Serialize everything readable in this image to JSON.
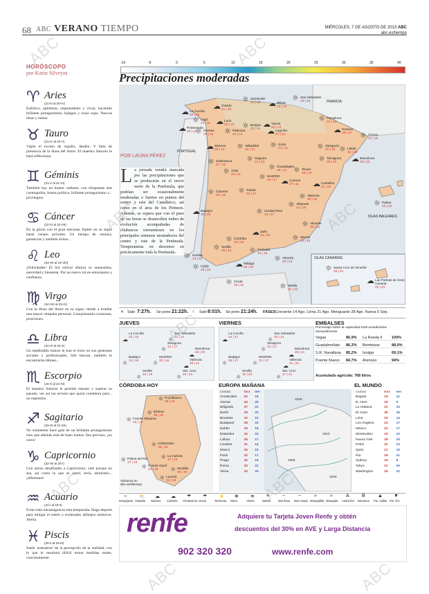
{
  "header": {
    "page_number": "68",
    "brand": "ABC",
    "section_main": "VERANO",
    "section_sub": "TIEMPO",
    "date": "MIÉRCOLES, 7 DE AGOSTO DE 2013",
    "brand_small": "ABC",
    "url": "abc.es/tiempo"
  },
  "horoscope": {
    "title": "HORÓSCOPO",
    "author": "por Karin Silveyra",
    "signs": [
      {
        "symbol": "♈",
        "name": "Aries",
        "dates": "(21-III al 20-IV)",
        "text": "Eufórico, optimista, emprendedor y vivaz, haciendo brillante protagonismo, halagos y rosas rojas. Nuevas ideas y metas."
      },
      {
        "symbol": "♉",
        "name": "Tauro",
        "dates": "(21-IV al 20-V)",
        "text": "Vigile el exceso de orgullo, desdén. Y falta de presencia de la diosa del Amor. El maestro Saturno le hará reflexionar."
      },
      {
        "symbol": "♊",
        "name": "Géminis",
        "dates": "(21-V al 21-VI)",
        "text": "También hoy un humor radiante, con chispeante aire cosmopolita, buena política, brillante protagonismo y... privilegios."
      },
      {
        "symbol": "♋",
        "name": "Cáncer",
        "dates": "(22-VI al 22-VII)",
        "text": "En la gloria con el gran mecenas Júpiter en su signo hasta verano próximo. Un tiempo de ventura, ganancias y también éxitos..."
      },
      {
        "symbol": "♌",
        "name": "Leo",
        "dates": "(23-VII al 23-VIII)",
        "text": "¡Felicidades! El Sol estival alienza su autoestima, autoridad y bienestar. Por su nuevo rol en entusiasmo y confianza."
      },
      {
        "symbol": "♍",
        "name": "Virgo",
        "dates": "(24-VIII al 23-IX)",
        "text": "Con la diosa del Amor en su signo, tiende a irradiar una mayor simpatía personal. Conquistando corazones, posiciones."
      },
      {
        "symbol": "♎",
        "name": "Libra",
        "dates": "(24-IX al 23-X)",
        "text": "Un espléndido humor le trae el éxito en sus gestiones sociales y profesionales. Sile buscan, también le encontrarán idóneo..."
      },
      {
        "symbol": "♏",
        "name": "Escorpio",
        "dates": "(24-X al 22-XI)",
        "text": "El maestro Saturno le permite repasar y superar su pasado, ver así los errores que quizá cometiera para... no repetirlos."
      },
      {
        "symbol": "♐",
        "name": "Sagitario",
        "dates": "(23-XI al 21-XII)",
        "text": "No solamente hace gala de un brillante protagonismo sino que además está de buen humor. Sea previsor, ¡no corra!"
      },
      {
        "symbol": "♑",
        "name": "Capricornio",
        "dates": "(22-XII al 20-I)",
        "text": "Con astros desafiando a Capricornio, vele porque no sea, así como lo que se usted, sería, asimismo... ¡diferentes!"
      },
      {
        "symbol": "♒",
        "name": "Acuario",
        "dates": "(21-I al 19-II)",
        "text": "Evite toda intransigencia esta temporada. Haga deporte para mitigar el estrés o eventuales altibajos anímicos. Alerta."
      },
      {
        "symbol": "♓",
        "name": "Piscis",
        "dates": "(20-II al 20-III)",
        "text": "Suele 'austraerse' de la percepción de la realidad, con lo que le resultará difícil tomar medidas reales, concretamente."
      }
    ]
  },
  "map": {
    "scale_labels": [
      "-10",
      "-5",
      "0",
      "5",
      "10",
      "15",
      "20",
      "25",
      "30",
      "35",
      "40"
    ],
    "title": "Precipitaciones moderadas",
    "author": "POR LAURA PÉREZ",
    "article": "La jornada vendrá marcada por las precipitaciones que se producirán en el tercio norte de la Península, que podrían ser ocasionalmente moderadas o fuertes en puntos del centro y este del Cantábrico, así como en el área de los Pirineos. Además, se espera que con el paso de las horas se desarrollen nubes de evolución acompañadas de chubascos tormentosos en los principales sistemas montañosos del centro y este de la Península. Temperaturas en descenso en prácticamente toda la Península.",
    "region_labels": {
      "portugal": "PORTUGAL",
      "francia": "FRANCIA",
      "baleares": "ISLAS BALEARES",
      "canarias": "ISLAS CANARIAS"
    },
    "cities": [
      {
        "name": "La Coruña",
        "temps": "20 | 16"
      },
      {
        "name": "Oviedo",
        "temps": "21 | 15"
      },
      {
        "name": "Santander",
        "temps": "22 | 18"
      },
      {
        "name": "Bilbao",
        "temps": "23 | 16"
      },
      {
        "name": "San Sebastián",
        "temps": "19 | 15"
      },
      {
        "name": "Pamplona",
        "temps": "24 | 14"
      },
      {
        "name": "Huesca",
        "temps": "29 | 17"
      },
      {
        "name": "Girona",
        "temps": "31 | 18"
      },
      {
        "name": "Lugo",
        "temps": "21 | 11"
      },
      {
        "name": "León",
        "temps": "23 | 10"
      },
      {
        "name": "Burgos",
        "temps": "22 | 11"
      },
      {
        "name": "Vitoria",
        "temps": "22 | 13"
      },
      {
        "name": "Logroño",
        "temps": "27 | 14"
      },
      {
        "name": "Zaragoza",
        "temps": "30 | 18"
      },
      {
        "name": "Lleida",
        "temps": "32 | 19"
      },
      {
        "name": "Barcelona",
        "temps": "29 | 22"
      },
      {
        "name": "Pontevedra",
        "temps": "26 | 14"
      },
      {
        "name": "Orense",
        "temps": "28 | 14"
      },
      {
        "name": "Palencia",
        "temps": "24 | 12"
      },
      {
        "name": "Soria",
        "temps": "24 | 11"
      },
      {
        "name": "Tarragona",
        "temps": "28 | 22"
      },
      {
        "name": "Zamora",
        "temps": "28 | 13"
      },
      {
        "name": "Valladolid",
        "temps": "26 | 12"
      },
      {
        "name": "Segovia",
        "temps": "24 | 13"
      },
      {
        "name": "Guadalajara",
        "temps": "28 | 14"
      },
      {
        "name": "Teruel",
        "temps": "28 | 12"
      },
      {
        "name": "Castellón",
        "temps": "31 | 21"
      },
      {
        "name": "Palma",
        "temps": "33 | 22"
      },
      {
        "name": "Salamanca",
        "temps": "27 | 10"
      },
      {
        "name": "Ávila",
        "temps": "23 | 11"
      },
      {
        "name": "MADRID",
        "temps": "28 | 17"
      },
      {
        "name": "Cuenca",
        "temps": "27 | 11"
      },
      {
        "name": "Valencia",
        "temps": "30 | 20"
      },
      {
        "name": "Cáceres",
        "temps": "33 | 15"
      },
      {
        "name": "Toledo",
        "temps": "31 | 17"
      },
      {
        "name": "Albacete",
        "temps": "31 | 15"
      },
      {
        "name": "Badajoz",
        "temps": "35 | 16"
      },
      {
        "name": "Ciudad Real",
        "temps": "33 | 17"
      },
      {
        "name": "Alicante",
        "temps": "30 | 22"
      },
      {
        "name": "Murcia",
        "temps": "33 | 20"
      },
      {
        "name": "Córdoba",
        "temps": "38 | 19"
      },
      {
        "name": "Jaén",
        "temps": "34 | 20"
      },
      {
        "name": "Sevilla",
        "temps": "36 | 19"
      },
      {
        "name": "Huelva",
        "temps": "33 | 20"
      },
      {
        "name": "Granada",
        "temps": "34 | 16"
      },
      {
        "name": "Almería",
        "temps": "29 | 23"
      },
      {
        "name": "Málaga",
        "temps": "30 | 22"
      },
      {
        "name": "Cádiz",
        "temps": "26 | 22"
      },
      {
        "name": "Ceuta",
        "temps": "26 | 22"
      },
      {
        "name": "Melilla",
        "temps": "32 | 24"
      },
      {
        "name": "Santa Cruz de Tenerife",
        "temps": "26 | 21"
      },
      {
        "name": "Las Palmas de Gran Canaria",
        "temps": "26 | 23"
      }
    ]
  },
  "sun": {
    "sunrise_label": "Sale",
    "sunrise": "7:27h.",
    "sunset_label": "Se pone",
    "sunset": "21:22h.",
    "moonrise_label": "Sale",
    "moonrise": "8:01h.",
    "moonset_label": "Se pone",
    "moonset": "21:24h.",
    "phases_label": "FASES",
    "phases": "Creciente 14 Ago. Llena 21 Ago. Menguante 28 Ago. Nueva 6 Sep."
  },
  "forecast": {
    "jueves": "JUEVES",
    "viernes": "VIERNES",
    "jueves_cities": [
      {
        "name": "La Coruña",
        "temps": "22 | 16"
      },
      {
        "name": "San Sebastián",
        "temps": "21 | 14"
      },
      {
        "name": "Zaragoza",
        "temps": "31 | 17"
      },
      {
        "name": "Barcelona",
        "temps": "28 | 20"
      },
      {
        "name": "Badajoz",
        "temps": "34 | 16"
      },
      {
        "name": "MADRID",
        "temps": "30 | 16"
      },
      {
        "name": "Valencia",
        "temps": "30 | 21"
      },
      {
        "name": "Sevilla",
        "temps": "34 | 19"
      },
      {
        "name": "Sta. Cruz",
        "temps": "26 | 21"
      }
    ],
    "viernes_cities": [
      {
        "name": "La Coruña",
        "temps": "24 | 17"
      },
      {
        "name": "San Sebastián",
        "temps": "25 | 14"
      },
      {
        "name": "Zaragoza",
        "temps": "31 | 17"
      },
      {
        "name": "Barcelona",
        "temps": "28 | 21"
      },
      {
        "name": "Badajoz",
        "temps": "36 | 17"
      },
      {
        "name": "MADRID",
        "temps": "31 | 17"
      },
      {
        "name": "Valencia",
        "temps": "31 | 21"
      },
      {
        "name": "Sevilla",
        "temps": "36 | 20"
      },
      {
        "name": "Sta. Cruz",
        "temps": "27 | 21"
      }
    ]
  },
  "embalses": {
    "title": "EMBALSES",
    "subtitle": "Porcentaje sobre la capacidad total actualizados semanalmente",
    "rows": [
      {
        "name": "Vegas",
        "value": "86,9%",
        "name2": "La Rueda II",
        "value2": "100%"
      },
      {
        "name": "Guadalmellato",
        "value": "86,3%",
        "name2": "Bembézar",
        "value2": "88,9%"
      },
      {
        "name": "S.R. Navallana",
        "value": "85,2%",
        "name2": "Iznájar",
        "value2": "69,1%"
      },
      {
        "name": "Puente Nuevo",
        "value": "84,7%",
        "name2": "Arenoso",
        "value2": "94%"
      }
    ],
    "total_label": "Acumulado agrícola:",
    "total": "768 litros"
  },
  "cordoba": {
    "title": "CÓRDOBA HOY",
    "towns": [
      {
        "name": "Pozoblanco",
        "temps": "35 | 18"
      },
      {
        "name": "Bélmez",
        "temps": "35 | 19"
      },
      {
        "name": "Fuente Obejuna",
        "temps": "33 | 18"
      },
      {
        "name": "CÓRDOBA",
        "temps": "38 | 19"
      },
      {
        "name": "La Carlota",
        "temps": "37 | 19"
      },
      {
        "name": "Palma del Río",
        "temps": "37 | 19"
      },
      {
        "name": "Puente Genil",
        "temps": "34 | 19"
      },
      {
        "name": "Montilla",
        "temps": "35 | 19"
      },
      {
        "name": "Lucena",
        "temps": "34 | 19"
      }
    ],
    "source": "Visítanos en abc.es/eltiempo"
  },
  "europa": {
    "title": "EUROPA MAÑANA",
    "col_city": "CIUDAD",
    "col_max": "MAX",
    "col_min": "MIN",
    "rows": [
      {
        "c": "Ámsterdam",
        "max": "20",
        "min": "16"
      },
      {
        "c": "Atenas",
        "max": "34",
        "min": "25"
      },
      {
        "c": "Bélgrado",
        "max": "37",
        "min": "22"
      },
      {
        "c": "Berlín",
        "max": "29",
        "min": "20"
      },
      {
        "c": "Bruselas",
        "max": "22",
        "min": "15"
      },
      {
        "c": "Budapest",
        "max": "39",
        "min": "22"
      },
      {
        "c": "Dublín",
        "max": "19",
        "min": "15"
      },
      {
        "c": "Estambul",
        "max": "32",
        "min": "24"
      },
      {
        "c": "Lisboa",
        "max": "25",
        "min": "17"
      },
      {
        "c": "Londres",
        "max": "21",
        "min": "14"
      },
      {
        "c": "Moscú",
        "max": "25",
        "min": "15"
      },
      {
        "c": "París",
        "max": "22",
        "min": "17"
      },
      {
        "c": "Praga",
        "max": "32",
        "min": "19"
      },
      {
        "c": "Roma",
        "max": "33",
        "min": "22"
      },
      {
        "c": "Viena",
        "max": "33",
        "min": "20"
      }
    ],
    "pressure": [
      "1016",
      "1012",
      "1008",
      "1020"
    ]
  },
  "mundo": {
    "title": "EL MUNDO",
    "col_city": "CIUDAD",
    "col_max": "MAX",
    "col_min": "MIN",
    "rows": [
      {
        "c": "Bogotá",
        "max": "18",
        "min": "11"
      },
      {
        "c": "B. Aires",
        "max": "18",
        "min": "9"
      },
      {
        "c": "La Habana",
        "max": "31",
        "min": "23"
      },
      {
        "c": "El Cairo",
        "max": "36",
        "min": "26"
      },
      {
        "c": "Lima",
        "max": "19",
        "min": "14"
      },
      {
        "c": "Los Ángeles",
        "max": "24",
        "min": "17"
      },
      {
        "c": "México",
        "max": "24",
        "min": "17"
      },
      {
        "c": "Montevideo",
        "max": "16",
        "min": "10"
      },
      {
        "c": "Nueva York",
        "max": "28",
        "min": "20"
      },
      {
        "c": "Pekín",
        "max": "32",
        "min": "23"
      },
      {
        "c": "Quito",
        "max": "21",
        "min": "10"
      },
      {
        "c": "Río",
        "max": "28",
        "min": "21"
      },
      {
        "c": "Sydney",
        "max": "16",
        "min": "8"
      },
      {
        "c": "Tokyo",
        "max": "31",
        "min": "25"
      },
      {
        "c": "Washington",
        "max": "26",
        "min": "22"
      }
    ]
  },
  "legend": [
    "Despejado",
    "Variable",
    "Nuboso",
    "Cubierto",
    "Chubascos",
    "Lluvia",
    "Tormenta",
    "Nieve",
    "Viento",
    "Niebla",
    "Mar llana",
    "Mar rizada",
    "Marejadilla",
    "Marejada",
    "Anticiclón",
    "Borrasca",
    "Fte. cálido",
    "Fte. frío"
  ],
  "ad": {
    "logo": "renfe",
    "line1": "Adquiere tu Tarjeta Joven Renfe y obtén",
    "line2": "descuentos del 30% en AVE y Larga Distancia",
    "phone": "902 320 320",
    "web": "www.renfe.com"
  },
  "watermark": "ABC"
}
